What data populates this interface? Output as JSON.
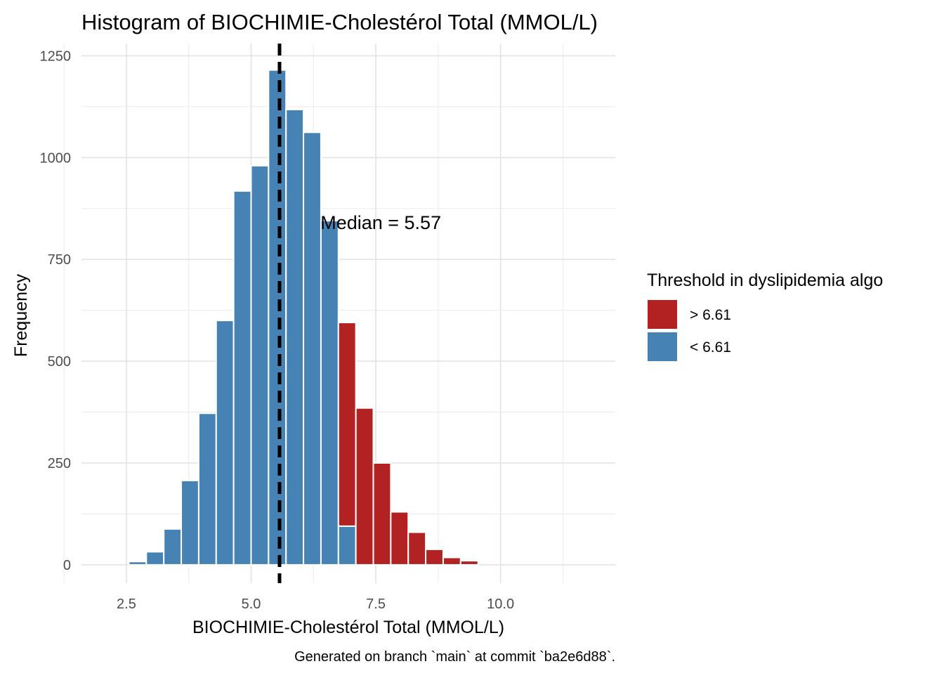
{
  "chart_data": {
    "type": "bar",
    "title": "Histogram of BIOCHIMIE-Cholestérol Total (MMOL/L)",
    "xlabel": "BIOCHIMIE-Cholestérol Total (MMOL/L)",
    "ylabel": "Frequency",
    "xlim": [
      1.6,
      12.3
    ],
    "ylim": [
      -45,
      1280
    ],
    "x_ticks": [
      2.5,
      5.0,
      7.5,
      10.0
    ],
    "x_tick_labels": [
      "2.5",
      "5.0",
      "7.5",
      "10.0"
    ],
    "y_ticks": [
      0,
      250,
      500,
      750,
      1000,
      1250
    ],
    "y_tick_labels": [
      "0",
      "250",
      "500",
      "750",
      "1000",
      "1250"
    ],
    "bin_width": 0.35,
    "bin_starts": [
      2.55,
      2.9,
      3.25,
      3.6,
      3.95,
      4.3,
      4.65,
      5.0,
      5.35,
      5.7,
      6.05,
      6.4,
      6.75,
      7.1,
      7.45,
      7.8,
      8.15,
      8.5,
      8.85,
      9.2
    ],
    "series": [
      {
        "name": "< 6.61",
        "color": "#4682B4",
        "values": [
          8,
          32,
          88,
          207,
          372,
          600,
          918,
          980,
          1215,
          1118,
          1062,
          845,
          95,
          0,
          0,
          0,
          0,
          0,
          0,
          0
        ]
      },
      {
        "name": "> 6.61",
        "color": "#B22222",
        "values": [
          0,
          0,
          0,
          0,
          0,
          0,
          0,
          0,
          0,
          0,
          0,
          0,
          500,
          385,
          250,
          130,
          80,
          38,
          18,
          10
        ]
      }
    ],
    "stacked": true,
    "bar_outline": "#ffffff",
    "median_line": {
      "x": 5.57,
      "style": "dashed",
      "color": "#000000"
    },
    "annotation": {
      "text": "Median = 5.57",
      "x": 7.6,
      "y": 840
    },
    "legend": {
      "title": "Threshold in dyslipidemia algo",
      "placement": "right",
      "items": [
        {
          "label": "> 6.61",
          "color": "#B22222"
        },
        {
          "label": "< 6.61",
          "color": "#4682B4"
        }
      ]
    },
    "grid": true,
    "caption": "Generated on branch `main` at commit `ba2e6d88`."
  }
}
